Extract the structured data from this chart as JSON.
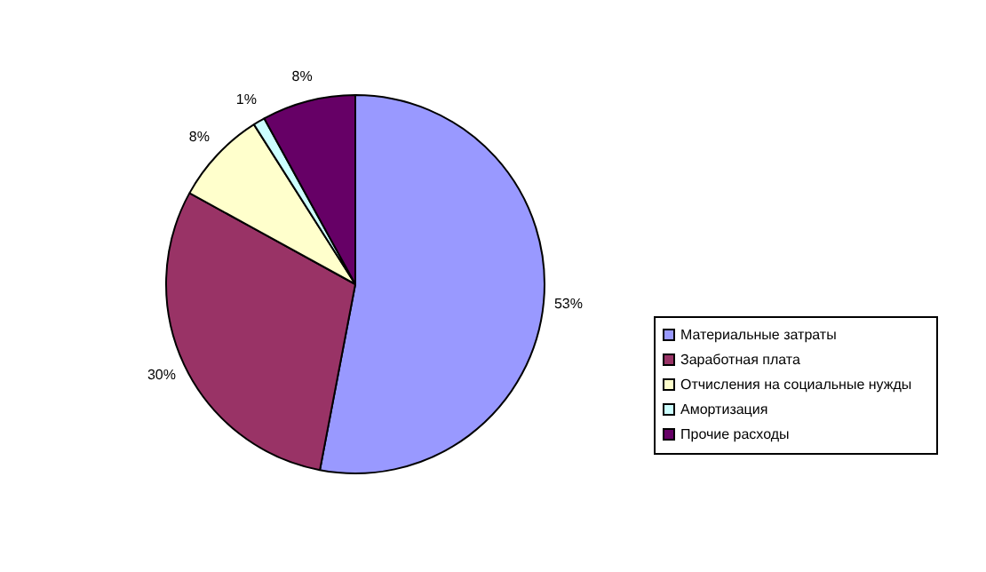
{
  "chart_data": {
    "type": "pie",
    "categories": [
      "Материальные затраты",
      "Заработная плата",
      "Отчисления на социальные нужды",
      "Амортизация",
      "Прочие расходы"
    ],
    "values": [
      53,
      30,
      8,
      1,
      8
    ],
    "colors": [
      "#9999ff",
      "#993366",
      "#ffffcc",
      "#ccffff",
      "#660066"
    ],
    "value_labels": [
      "53%",
      "30%",
      "8%",
      "1%",
      "8%"
    ],
    "legend": "right"
  }
}
